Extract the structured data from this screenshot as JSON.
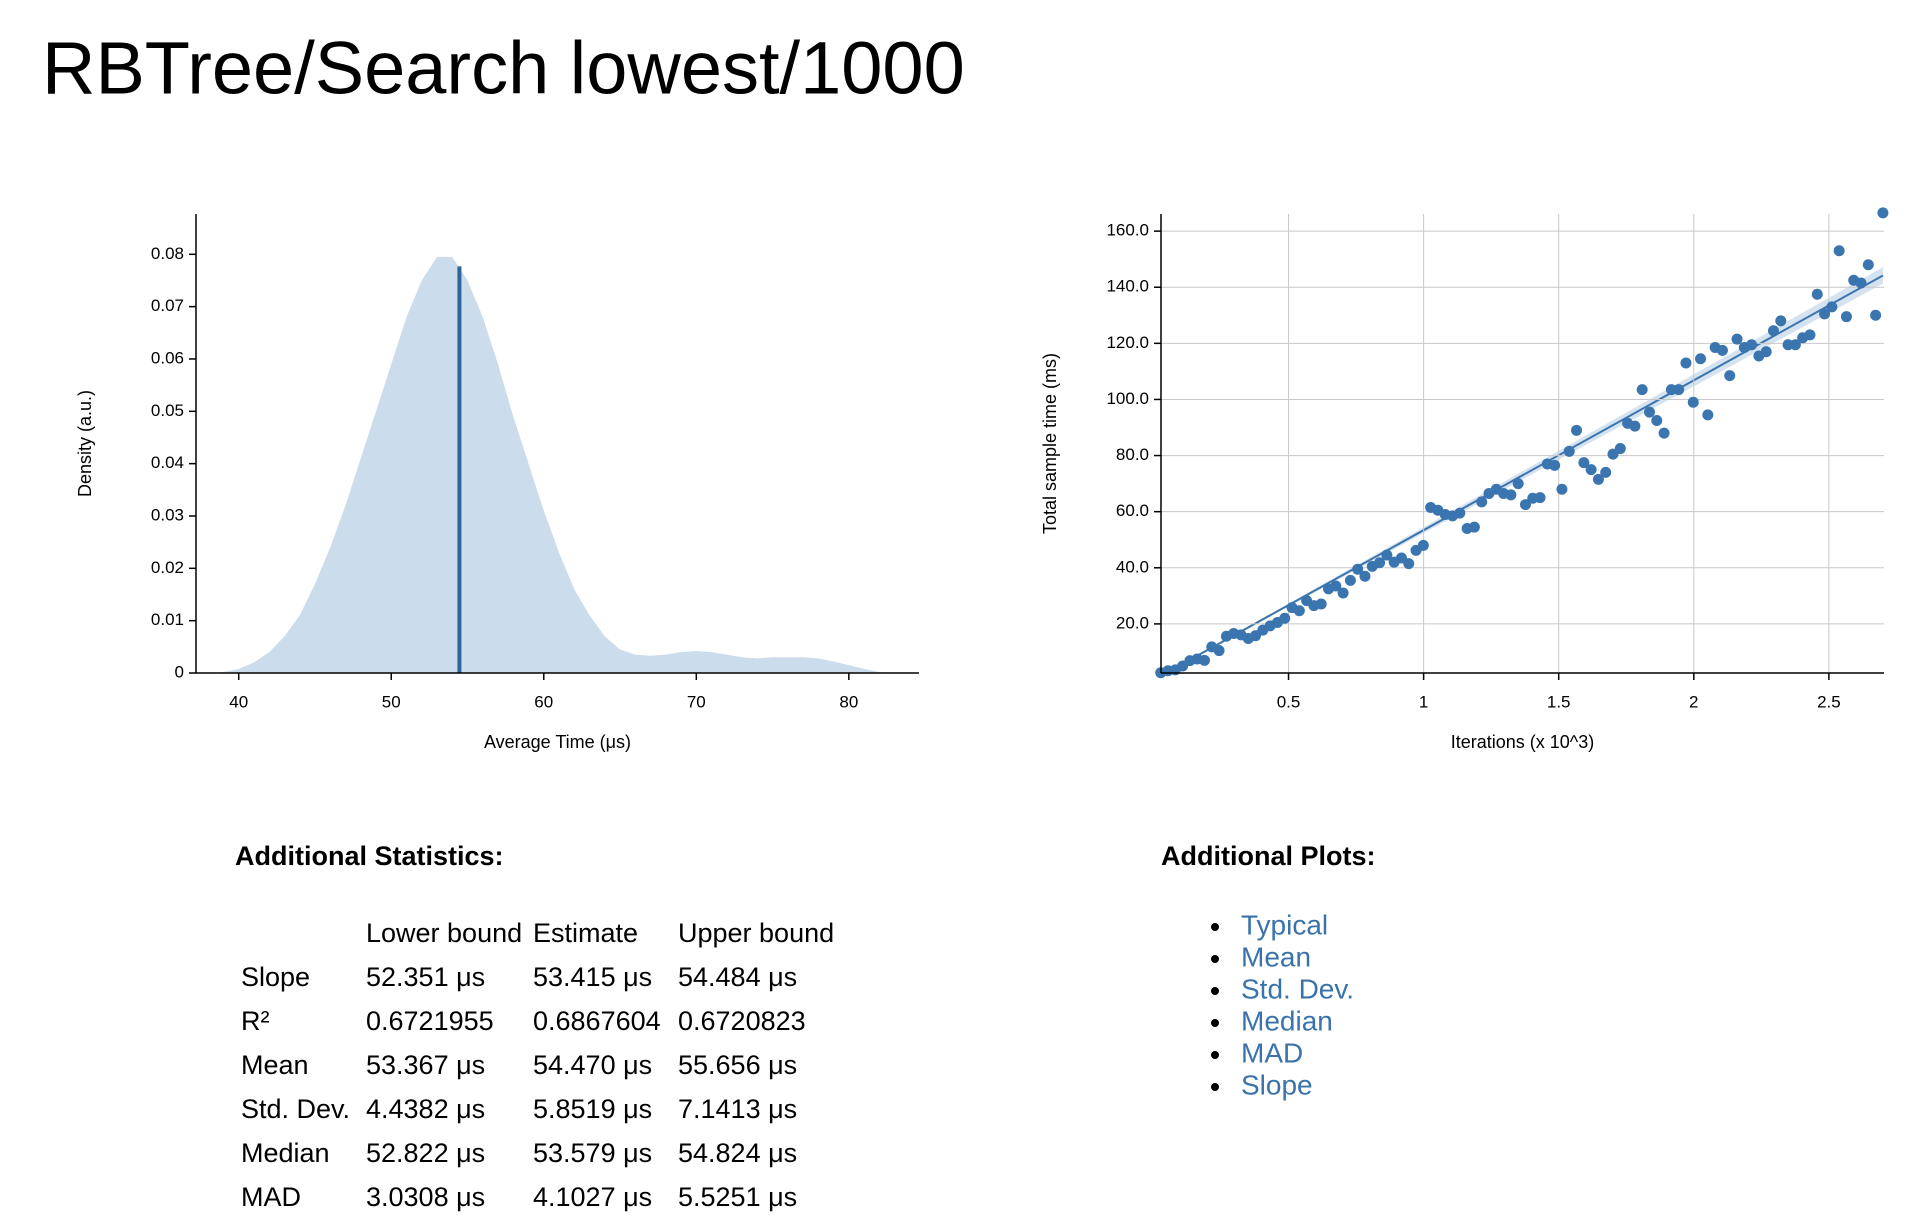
{
  "header": {
    "title": "RBTree/Search lowest/1000"
  },
  "chart_data": [
    {
      "type": "area",
      "xlabel": "Average Time (μs)",
      "ylabel": "Density (a.u.)",
      "color": "#cbdcec",
      "grid": false,
      "x": [
        38,
        39,
        40,
        41,
        42,
        43,
        44,
        45,
        46,
        47,
        48,
        49,
        50,
        51,
        52,
        53,
        54,
        55,
        56,
        57,
        58,
        59,
        60,
        61,
        62,
        63,
        64,
        65,
        66,
        67,
        68,
        69,
        70,
        71,
        72,
        73,
        74,
        75,
        76,
        77,
        78,
        79,
        80,
        81,
        82,
        83
      ],
      "y": [
        0,
        0.0002,
        0.0008,
        0.002,
        0.004,
        0.007,
        0.011,
        0.017,
        0.024,
        0.032,
        0.041,
        0.05,
        0.059,
        0.068,
        0.075,
        0.0795,
        0.0795,
        0.075,
        0.068,
        0.059,
        0.049,
        0.04,
        0.031,
        0.023,
        0.016,
        0.011,
        0.007,
        0.0045,
        0.0035,
        0.0033,
        0.0035,
        0.004,
        0.0042,
        0.004,
        0.0035,
        0.003,
        0.0028,
        0.003,
        0.003,
        0.003,
        0.0028,
        0.0022,
        0.0015,
        0.0008,
        0.0002,
        0
      ],
      "mean_line": {
        "x": 54.47,
        "y": 0.0777,
        "color": "#2f6496"
      },
      "xlim": [
        37.2,
        84.6
      ],
      "xticks": [
        40,
        50,
        60,
        70,
        80
      ],
      "ylim": [
        0,
        0.0877
      ],
      "yticks": [
        0,
        0.01,
        0.02,
        0.03,
        0.04,
        0.05,
        0.06,
        0.07,
        0.08
      ]
    },
    {
      "type": "scatter",
      "xlabel": "Iterations (x 10^3)",
      "ylabel": "Total sample time (ms)",
      "color": "#3b75af",
      "grid": true,
      "x": [
        0.027,
        0.054,
        0.081,
        0.108,
        0.135,
        0.162,
        0.189,
        0.216,
        0.243,
        0.27,
        0.297,
        0.324,
        0.351,
        0.378,
        0.405,
        0.432,
        0.459,
        0.486,
        0.513,
        0.54,
        0.567,
        0.594,
        0.621,
        0.648,
        0.675,
        0.702,
        0.729,
        0.756,
        0.783,
        0.81,
        0.837,
        0.864,
        0.891,
        0.918,
        0.945,
        0.972,
        0.999,
        1.026,
        1.053,
        1.08,
        1.107,
        1.134,
        1.161,
        1.188,
        1.215,
        1.242,
        1.269,
        1.296,
        1.323,
        1.35,
        1.377,
        1.404,
        1.431,
        1.458,
        1.485,
        1.512,
        1.539,
        1.566,
        1.593,
        1.62,
        1.647,
        1.674,
        1.701,
        1.728,
        1.755,
        1.782,
        1.809,
        1.836,
        1.863,
        1.89,
        1.917,
        1.944,
        1.971,
        1.998,
        2.025,
        2.052,
        2.079,
        2.106,
        2.133,
        2.16,
        2.187,
        2.214,
        2.241,
        2.268,
        2.295,
        2.322,
        2.349,
        2.376,
        2.403,
        2.43,
        2.457,
        2.484,
        2.511,
        2.538,
        2.565,
        2.592,
        2.619,
        2.646,
        2.673,
        2.7
      ],
      "y": [
        2.6,
        3.3,
        3.6,
        5.0,
        6.9,
        7.5,
        7.0,
        11.8,
        10.5,
        15.6,
        16.6,
        16.1,
        14.8,
        15.8,
        17.8,
        19.3,
        20.5,
        22.0,
        25.8,
        24.7,
        28.3,
        26.5,
        27.1,
        32.5,
        33.5,
        31.0,
        35.5,
        39.5,
        37.0,
        40.5,
        41.8,
        44.5,
        42.0,
        43.5,
        41.5,
        46.2,
        48.0,
        61.5,
        60.5,
        59.0,
        58.5,
        59.5,
        54.0,
        54.5,
        63.5,
        66.5,
        68.0,
        66.5,
        66.0,
        70.0,
        62.5,
        64.8,
        65.0,
        77.0,
        76.5,
        68.0,
        81.5,
        89.0,
        77.5,
        75.0,
        71.5,
        74.0,
        80.5,
        82.5,
        91.5,
        90.5,
        103.5,
        95.5,
        92.5,
        88.0,
        103.5,
        103.5,
        113.0,
        99.0,
        114.5,
        94.5,
        118.5,
        117.5,
        108.5,
        121.5,
        118.5,
        119.5,
        115.5,
        117.0,
        124.5,
        128.0,
        119.5,
        119.5,
        122.0,
        123.0,
        137.5,
        130.5,
        133.0,
        153.0,
        129.5,
        142.5,
        141.5,
        148.0,
        130.0,
        166.5
      ],
      "regression": {
        "x": [
          0,
          2.7
        ],
        "y": [
          0,
          144.2
        ],
        "lower": [
          0,
          141.3
        ],
        "upper": [
          0,
          147.1
        ],
        "color": "#3b75af",
        "band_color": "#cbdcec"
      },
      "xlim": [
        0.028,
        2.704
      ],
      "xticks": [
        0.5,
        1,
        1.5,
        2,
        2.5
      ],
      "ylim": [
        2.5,
        166.1
      ],
      "yticks": [
        {
          "value": 20,
          "label": "20.0"
        },
        {
          "value": 40,
          "label": "40.0"
        },
        {
          "value": 60,
          "label": "60.0"
        },
        {
          "value": 80,
          "label": "80.0"
        },
        {
          "value": 100,
          "label": "100.0"
        },
        {
          "value": 120,
          "label": "120.0"
        },
        {
          "value": 140,
          "label": "140.0"
        },
        {
          "value": 160,
          "label": "160.0"
        }
      ]
    }
  ],
  "statistics": {
    "title": "Additional Statistics:",
    "columns": [
      "Lower bound",
      "Estimate",
      "Upper bound"
    ],
    "rows": [
      [
        "Slope",
        "52.351 μs",
        "53.415 μs",
        "54.484 μs"
      ],
      [
        "R²",
        "0.6721955",
        "0.6867604",
        "0.6720823"
      ],
      [
        "Mean",
        "53.367 μs",
        "54.470 μs",
        "55.656 μs"
      ],
      [
        "Std. Dev.",
        "4.4382 μs",
        "5.8519 μs",
        "7.1413 μs"
      ],
      [
        "Median",
        "52.822 μs",
        "53.579 μs",
        "54.824 μs"
      ],
      [
        "MAD",
        "3.0308 μs",
        "4.1027 μs",
        "5.5251 μs"
      ]
    ]
  },
  "plots": {
    "title": "Additional Plots:",
    "links": [
      "Typical",
      "Mean",
      "Std. Dev.",
      "Median",
      "MAD",
      "Slope"
    ]
  }
}
